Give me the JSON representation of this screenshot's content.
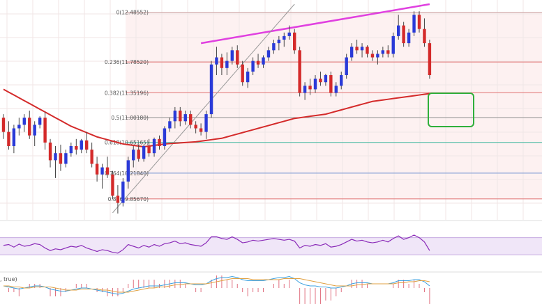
{
  "chart_data": [
    {
      "type": "candlestick",
      "panel": "price",
      "ylim": [
        9.6,
        12.6
      ],
      "grid": true,
      "fib_levels": [
        {
          "label": "0(12.48552)",
          "ratio": 0,
          "value": 12.48552,
          "color": "#c8a0a0"
        },
        {
          "label": "0.236(11.78520)",
          "ratio": 0.236,
          "value": 11.7852,
          "color": "#e07070"
        },
        {
          "label": "0.382(11.35196)",
          "ratio": 0.382,
          "value": 11.35196,
          "color": "#e07070"
        },
        {
          "label": "0.5(11.00180)",
          "ratio": 0.5,
          "value": 11.0018,
          "color": "#909090"
        },
        {
          "label": "0.618(10.65165)",
          "ratio": 0.618,
          "value": 10.65165,
          "color": "#40b8a0"
        },
        {
          "label": "0.764(10.21840)",
          "ratio": 0.764,
          "value": 10.2184,
          "color": "#7090d0"
        },
        {
          "label": "0.886(9.85670)",
          "ratio": 0.886,
          "value": 9.8567,
          "color": "#e07070"
        }
      ],
      "candles": [
        [
          11.0,
          11.05,
          10.7,
          10.8
        ],
        [
          10.8,
          10.95,
          10.55,
          10.6
        ],
        [
          10.6,
          10.9,
          10.5,
          10.85
        ],
        [
          10.85,
          11.0,
          10.75,
          10.9
        ],
        [
          10.9,
          11.05,
          10.8,
          11.0
        ],
        [
          11.0,
          11.1,
          10.7,
          10.75
        ],
        [
          10.75,
          10.95,
          10.6,
          10.9
        ],
        [
          10.9,
          11.02,
          10.85,
          11.0
        ],
        [
          11.0,
          11.08,
          10.55,
          10.65
        ],
        [
          10.65,
          10.7,
          10.3,
          10.4
        ],
        [
          10.4,
          10.6,
          10.15,
          10.5
        ],
        [
          10.5,
          10.62,
          10.25,
          10.35
        ],
        [
          10.35,
          10.55,
          10.3,
          10.5
        ],
        [
          10.5,
          10.65,
          10.45,
          10.6
        ],
        [
          10.6,
          10.7,
          10.48,
          10.55
        ],
        [
          10.55,
          10.7,
          10.5,
          10.68
        ],
        [
          10.68,
          10.8,
          10.5,
          10.55
        ],
        [
          10.55,
          10.65,
          10.3,
          10.35
        ],
        [
          10.35,
          10.45,
          10.1,
          10.2
        ],
        [
          10.2,
          10.35,
          10.0,
          10.3
        ],
        [
          10.3,
          10.45,
          10.15,
          10.2
        ],
        [
          10.2,
          10.25,
          9.85,
          9.9
        ],
        [
          9.9,
          10.05,
          9.65,
          9.8
        ],
        [
          9.8,
          10.15,
          9.75,
          10.1
        ],
        [
          10.1,
          10.45,
          10.0,
          10.4
        ],
        [
          10.4,
          10.6,
          10.3,
          10.55
        ],
        [
          10.55,
          10.62,
          10.38,
          10.42
        ],
        [
          10.42,
          10.62,
          10.38,
          10.6
        ],
        [
          10.6,
          10.7,
          10.45,
          10.5
        ],
        [
          10.5,
          10.72,
          10.45,
          10.7
        ],
        [
          10.7,
          10.75,
          10.55,
          10.6
        ],
        [
          10.6,
          10.88,
          10.55,
          10.85
        ],
        [
          10.85,
          11.0,
          10.8,
          10.95
        ],
        [
          10.95,
          11.15,
          10.85,
          11.1
        ],
        [
          11.1,
          11.15,
          10.88,
          10.95
        ],
        [
          10.95,
          11.1,
          10.9,
          11.05
        ],
        [
          11.05,
          11.1,
          10.85,
          10.9
        ],
        [
          10.9,
          10.95,
          10.78,
          10.85
        ],
        [
          10.85,
          10.92,
          10.75,
          10.8
        ],
        [
          10.8,
          11.1,
          10.7,
          11.05
        ],
        [
          11.05,
          11.8,
          11.0,
          11.75
        ],
        [
          11.75,
          12.0,
          11.6,
          11.85
        ],
        [
          11.85,
          11.9,
          11.6,
          11.7
        ],
        [
          11.7,
          11.92,
          11.6,
          11.8
        ],
        [
          11.8,
          12.0,
          11.75,
          11.95
        ],
        [
          11.95,
          12.02,
          11.7,
          11.75
        ],
        [
          11.75,
          11.8,
          11.45,
          11.5
        ],
        [
          11.5,
          11.7,
          11.42,
          11.65
        ],
        [
          11.65,
          11.85,
          11.6,
          11.8
        ],
        [
          11.8,
          11.9,
          11.7,
          11.75
        ],
        [
          11.75,
          11.88,
          11.7,
          11.85
        ],
        [
          11.85,
          12.0,
          11.8,
          11.95
        ],
        [
          11.95,
          12.1,
          11.9,
          12.05
        ],
        [
          12.05,
          12.15,
          11.95,
          12.1
        ],
        [
          12.1,
          12.2,
          12.0,
          12.15
        ],
        [
          12.15,
          12.3,
          12.1,
          12.2
        ],
        [
          12.2,
          12.25,
          11.9,
          11.95
        ],
        [
          11.95,
          12.0,
          11.3,
          11.35
        ],
        [
          11.35,
          11.5,
          11.25,
          11.45
        ],
        [
          11.45,
          11.55,
          11.32,
          11.4
        ],
        [
          11.4,
          11.6,
          11.35,
          11.55
        ],
        [
          11.55,
          11.65,
          11.45,
          11.5
        ],
        [
          11.5,
          11.62,
          11.45,
          11.6
        ],
        [
          11.6,
          11.65,
          11.3,
          11.35
        ],
        [
          11.35,
          11.5,
          11.3,
          11.45
        ],
        [
          11.45,
          11.65,
          11.4,
          11.6
        ],
        [
          11.6,
          11.9,
          11.55,
          11.85
        ],
        [
          11.85,
          12.05,
          11.8,
          12.0
        ],
        [
          12.0,
          12.1,
          11.9,
          11.95
        ],
        [
          11.95,
          12.05,
          11.85,
          12.0
        ],
        [
          12.0,
          12.02,
          11.85,
          11.9
        ],
        [
          11.9,
          11.95,
          11.8,
          11.85
        ],
        [
          11.85,
          11.95,
          11.75,
          11.9
        ],
        [
          11.9,
          12.0,
          11.85,
          11.95
        ],
        [
          11.95,
          12.02,
          11.85,
          11.9
        ],
        [
          11.9,
          12.2,
          11.85,
          12.15
        ],
        [
          12.15,
          12.45,
          12.1,
          12.3
        ],
        [
          12.3,
          12.35,
          12.0,
          12.05
        ],
        [
          12.05,
          12.25,
          12.0,
          12.2
        ],
        [
          12.2,
          12.5,
          12.15,
          12.45
        ],
        [
          12.45,
          12.5,
          12.2,
          12.25
        ],
        [
          12.25,
          12.4,
          12.0,
          12.05
        ],
        [
          12.05,
          12.1,
          11.55,
          11.6
        ]
      ],
      "ma": [
        11.4,
        11.36,
        11.32,
        11.28,
        11.24,
        11.2,
        11.16,
        11.12,
        11.08,
        11.04,
        11.0,
        10.96,
        10.92,
        10.88,
        10.85,
        10.82,
        10.79,
        10.76,
        10.73,
        10.71,
        10.69,
        10.67,
        10.65,
        10.63,
        10.62,
        10.61,
        10.6,
        10.59,
        10.6,
        10.61,
        10.62,
        10.63,
        10.635,
        10.64,
        10.645,
        10.65,
        10.655,
        10.66,
        10.67,
        10.68,
        10.69,
        10.7,
        10.71,
        10.73,
        10.75,
        10.77,
        10.79,
        10.81,
        10.83,
        10.85,
        10.87,
        10.89,
        10.91,
        10.93,
        10.95,
        10.97,
        10.99,
        11.0,
        11.01,
        11.02,
        11.03,
        11.04,
        11.05,
        11.07,
        11.09,
        11.11,
        11.13,
        11.15,
        11.17,
        11.19,
        11.21,
        11.23,
        11.24,
        11.25,
        11.26,
        11.27,
        11.28,
        11.29,
        11.3,
        11.31,
        11.32,
        11.33,
        11.34
      ],
      "annotations": [
        {
          "type": "trendline",
          "color": "#e040e0",
          "from": [
            38,
            12.05
          ],
          "to": [
            82,
            12.6
          ]
        },
        {
          "type": "trendline",
          "color": "#999999",
          "from": [
            21,
            9.66
          ],
          "to": [
            56,
            12.6
          ]
        },
        {
          "type": "box",
          "color": "#2faf3a"
        }
      ]
    },
    {
      "type": "line",
      "panel": "rsi",
      "ylim": [
        0,
        100
      ],
      "levels": [
        30,
        70
      ],
      "values": [
        52,
        54,
        48,
        55,
        50,
        52,
        56,
        54,
        46,
        40,
        44,
        42,
        46,
        50,
        48,
        52,
        46,
        42,
        38,
        42,
        40,
        36,
        34,
        42,
        54,
        50,
        46,
        52,
        48,
        54,
        50,
        56,
        58,
        62,
        56,
        58,
        54,
        52,
        50,
        58,
        72,
        72,
        68,
        66,
        72,
        66,
        58,
        60,
        64,
        62,
        64,
        66,
        68,
        66,
        64,
        66,
        62,
        46,
        52,
        50,
        54,
        52,
        56,
        48,
        50,
        54,
        60,
        66,
        62,
        64,
        60,
        58,
        60,
        64,
        60,
        68,
        74,
        66,
        70,
        76,
        70,
        60,
        40
      ]
    },
    {
      "type": "line",
      "panel": "macd",
      "macd": [
        0.02,
        0.01,
        0.0,
        -0.01,
        0.0,
        0.01,
        0.02,
        0.02,
        0.01,
        -0.01,
        -0.02,
        -0.03,
        -0.03,
        -0.02,
        -0.01,
        0.0,
        0.0,
        -0.01,
        -0.02,
        -0.03,
        -0.04,
        -0.05,
        -0.06,
        -0.05,
        -0.03,
        -0.01,
        0.0,
        0.01,
        0.02,
        0.02,
        0.02,
        0.03,
        0.04,
        0.05,
        0.05,
        0.05,
        0.04,
        0.03,
        0.03,
        0.04,
        0.07,
        0.09,
        0.1,
        0.1,
        0.11,
        0.1,
        0.08,
        0.07,
        0.07,
        0.07,
        0.07,
        0.08,
        0.09,
        0.1,
        0.1,
        0.11,
        0.09,
        0.05,
        0.03,
        0.02,
        0.02,
        0.01,
        0.01,
        0.0,
        0.0,
        0.01,
        0.02,
        0.04,
        0.05,
        0.05,
        0.05,
        0.04,
        0.04,
        0.04,
        0.04,
        0.05,
        0.07,
        0.07,
        0.07,
        0.08,
        0.08,
        0.06,
        0.02
      ],
      "signal": [
        0.02,
        0.02,
        0.01,
        0.01,
        0.0,
        0.0,
        0.01,
        0.01,
        0.01,
        0.01,
        0.0,
        -0.01,
        -0.02,
        -0.02,
        -0.02,
        -0.01,
        -0.01,
        -0.01,
        -0.01,
        -0.02,
        -0.02,
        -0.03,
        -0.04,
        -0.04,
        -0.04,
        -0.03,
        -0.02,
        -0.01,
        0.0,
        0.0,
        0.01,
        0.01,
        0.02,
        0.03,
        0.03,
        0.04,
        0.04,
        0.04,
        0.04,
        0.04,
        0.05,
        0.06,
        0.07,
        0.08,
        0.09,
        0.09,
        0.09,
        0.09,
        0.08,
        0.08,
        0.08,
        0.08,
        0.08,
        0.08,
        0.09,
        0.09,
        0.09,
        0.09,
        0.08,
        0.07,
        0.06,
        0.05,
        0.04,
        0.03,
        0.02,
        0.02,
        0.02,
        0.02,
        0.03,
        0.03,
        0.04,
        0.04,
        0.04,
        0.04,
        0.04,
        0.04,
        0.05,
        0.05,
        0.06,
        0.06,
        0.07,
        0.07,
        0.06
      ],
      "text_fragment": ", true)"
    }
  ]
}
